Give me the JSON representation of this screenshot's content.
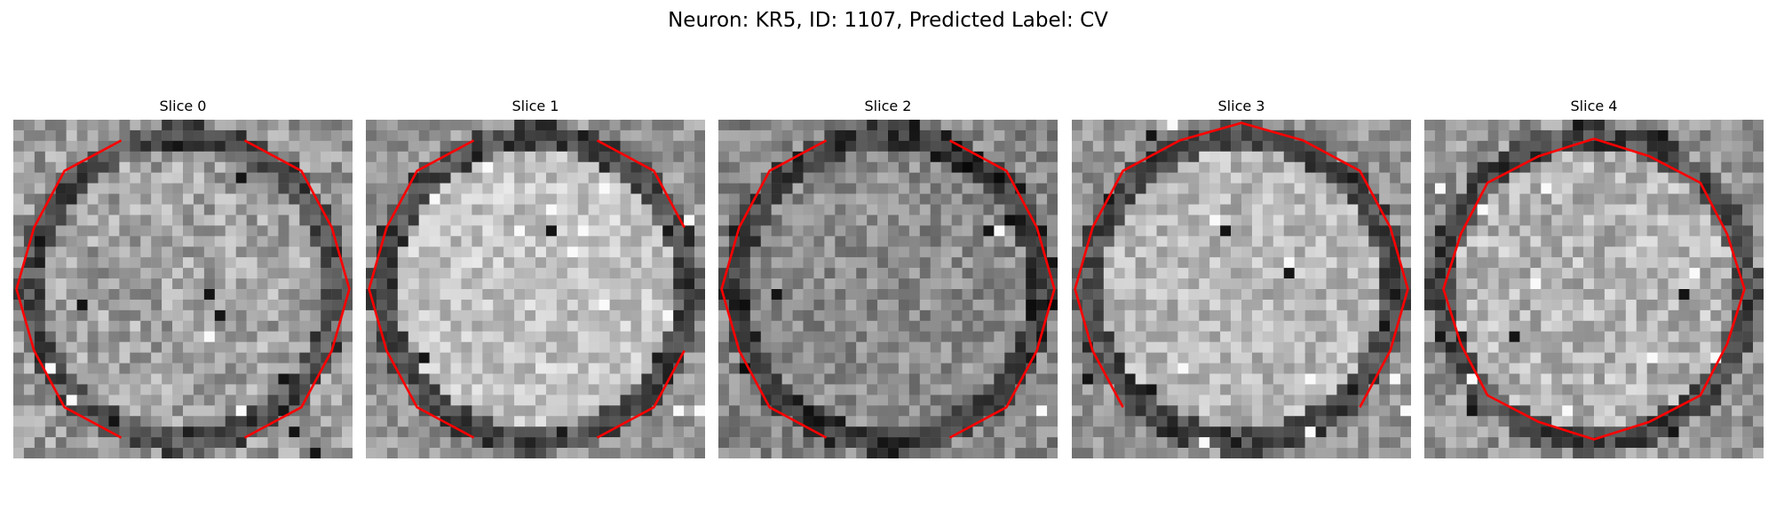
{
  "figure": {
    "title": "Neuron: KR5, ID: 1107, Predicted Label: CV"
  },
  "panels": [
    {
      "title": "Slice 0",
      "seed": 11,
      "base": 155,
      "contrast": 46,
      "contour": "open-top-bottom",
      "interior_boost": 8
    },
    {
      "title": "Slice 1",
      "seed": 23,
      "base": 150,
      "contrast": 38,
      "contour": "open-top-bottom-right",
      "interior_boost": 45
    },
    {
      "title": "Slice 2",
      "seed": 37,
      "base": 135,
      "contrast": 40,
      "contour": "open-top-bottom",
      "interior_boost": 5
    },
    {
      "title": "Slice 3",
      "seed": 41,
      "base": 148,
      "contrast": 38,
      "contour": "open-bottom",
      "interior_boost": 35
    },
    {
      "title": "Slice 4",
      "seed": 59,
      "base": 150,
      "contrast": 44,
      "contour": "closed",
      "interior_boost": 30
    }
  ],
  "colors": {
    "contour": "#ff0000",
    "background": "#ffffff",
    "text": "#000000"
  }
}
